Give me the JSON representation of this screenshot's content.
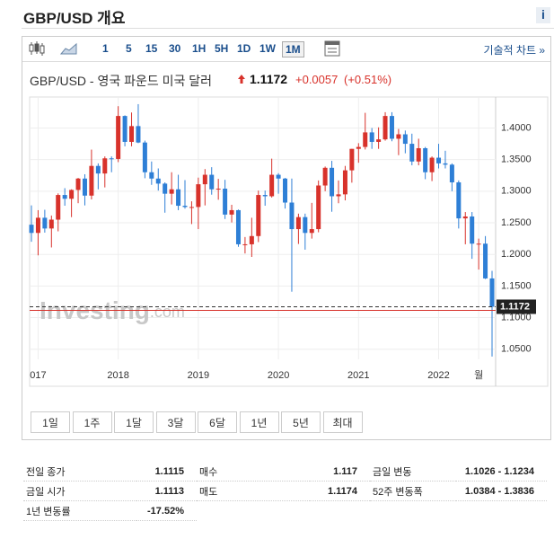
{
  "header": {
    "title": "GBP/USD 개요",
    "info": "i"
  },
  "toolbar": {
    "intervals": [
      "1",
      "5",
      "15",
      "30",
      "1H",
      "5H",
      "1D",
      "1W",
      "1M"
    ],
    "active": "1M",
    "advanced": "기술적 차트 »"
  },
  "quote": {
    "name": "GBP/USD - 영국 파운드 미국 달러",
    "price": "1.1172",
    "change": "+0.0057",
    "change_pct": "(+0.51%)"
  },
  "chart_data": {
    "type": "candlestick",
    "watermark": {
      "brand": "Investing",
      "suffix": ".com"
    },
    "categories": [
      null,
      "017",
      null,
      null,
      null,
      null,
      null,
      null,
      null,
      null,
      null,
      null,
      null,
      "2018",
      null,
      null,
      null,
      null,
      null,
      null,
      null,
      null,
      null,
      null,
      null,
      "2019",
      null,
      null,
      null,
      null,
      null,
      null,
      null,
      null,
      null,
      null,
      null,
      "2020",
      null,
      null,
      null,
      null,
      null,
      null,
      null,
      null,
      null,
      null,
      null,
      "2021",
      null,
      null,
      null,
      null,
      null,
      null,
      null,
      null,
      null,
      null,
      null,
      "2022",
      null,
      null,
      null,
      null,
      null,
      "월",
      null,
      null
    ],
    "open": [
      1.247,
      1.234,
      1.258,
      1.241,
      1.255,
      1.294,
      1.288,
      1.302,
      1.32,
      1.293,
      1.34,
      1.328,
      1.352,
      1.351,
      1.419,
      1.378,
      1.403,
      1.377,
      1.33,
      1.32,
      1.312,
      1.296,
      1.303,
      1.277,
      1.275,
      1.275,
      1.311,
      1.326,
      1.303,
      1.304,
      1.263,
      1.27,
      1.216,
      1.216,
      1.229,
      1.294,
      1.292,
      1.326,
      1.32,
      1.282,
      1.24,
      1.259,
      1.234,
      1.24,
      1.309,
      1.337,
      1.292,
      1.295,
      1.333,
      1.367,
      1.37,
      1.393,
      1.378,
      1.382,
      1.419,
      1.383,
      1.39,
      1.375,
      1.347,
      1.368,
      1.33,
      1.353,
      1.344,
      1.342,
      1.314,
      1.257,
      1.26,
      1.217,
      1.217,
      1.162
    ],
    "high": [
      1.2775,
      1.27,
      1.2706,
      1.2615,
      1.2965,
      1.3048,
      1.303,
      1.321,
      1.3268,
      1.3658,
      1.344,
      1.355,
      1.355,
      1.4345,
      1.42,
      1.4245,
      1.4377,
      1.38,
      1.347,
      1.336,
      1.314,
      1.33,
      1.326,
      1.3175,
      1.284,
      1.3215,
      1.335,
      1.338,
      1.3195,
      1.318,
      1.2785,
      1.271,
      1.2275,
      1.258,
      1.301,
      1.301,
      1.3515,
      1.3285,
      1.321,
      1.32,
      1.2645,
      1.2645,
      1.2815,
      1.317,
      1.339,
      1.348,
      1.317,
      1.34,
      1.367,
      1.376,
      1.424,
      1.4,
      1.401,
      1.425,
      1.425,
      1.3985,
      1.396,
      1.391,
      1.383,
      1.37,
      1.355,
      1.375,
      1.364,
      1.344,
      1.317,
      1.267,
      1.267,
      1.225,
      1.229,
      1.174
    ],
    "low": [
      1.22,
      1.1985,
      1.2345,
      1.211,
      1.2365,
      1.277,
      1.259,
      1.281,
      1.2775,
      1.287,
      1.303,
      1.306,
      1.33,
      1.346,
      1.371,
      1.371,
      1.376,
      1.3205,
      1.31,
      1.301,
      1.266,
      1.279,
      1.27,
      1.2725,
      1.248,
      1.24,
      1.2775,
      1.2945,
      1.2865,
      1.256,
      1.2505,
      1.212,
      1.2015,
      1.196,
      1.2195,
      1.277,
      1.29,
      1.296,
      1.2725,
      1.141,
      1.2165,
      1.2075,
      1.225,
      1.235,
      1.3,
      1.2675,
      1.281,
      1.2855,
      1.3135,
      1.345,
      1.366,
      1.367,
      1.367,
      1.38,
      1.379,
      1.357,
      1.36,
      1.341,
      1.341,
      1.319,
      1.316,
      1.336,
      1.336,
      1.3,
      1.241,
      1.216,
      1.193,
      1.176,
      1.161,
      1.0384
    ],
    "close": [
      1.234,
      1.258,
      1.241,
      1.255,
      1.294,
      1.288,
      1.302,
      1.32,
      1.293,
      1.34,
      1.328,
      1.352,
      1.351,
      1.419,
      1.378,
      1.403,
      1.377,
      1.33,
      1.32,
      1.312,
      1.296,
      1.303,
      1.277,
      1.275,
      1.275,
      1.311,
      1.326,
      1.303,
      1.304,
      1.263,
      1.27,
      1.216,
      1.216,
      1.229,
      1.294,
      1.292,
      1.326,
      1.32,
      1.282,
      1.24,
      1.259,
      1.234,
      1.24,
      1.309,
      1.337,
      1.292,
      1.295,
      1.333,
      1.367,
      1.37,
      1.393,
      1.378,
      1.382,
      1.419,
      1.383,
      1.39,
      1.375,
      1.347,
      1.368,
      1.33,
      1.353,
      1.344,
      1.342,
      1.314,
      1.257,
      1.26,
      1.217,
      1.217,
      1.162,
      1.1172
    ],
    "up_color": "#d8322b",
    "down_color": "#2e7fd6",
    "ylim": [
      1.034,
      1.449
    ],
    "yticks": [
      {
        "value": 1.05,
        "label": "1.0500"
      },
      {
        "value": 1.1,
        "label": "1.1000"
      },
      {
        "value": 1.15,
        "label": "1.1500"
      },
      {
        "value": 1.2,
        "label": "1.2000"
      },
      {
        "value": 1.25,
        "label": "1.2500"
      },
      {
        "value": 1.3,
        "label": "1.3000"
      },
      {
        "value": 1.35,
        "label": "1.3500"
      },
      {
        "value": 1.4,
        "label": "1.4000"
      }
    ],
    "grid": true
  },
  "ranges": [
    "1일",
    "1주",
    "1달",
    "3달",
    "6달",
    "1년",
    "5년",
    "최대"
  ],
  "stats": {
    "rows": [
      [
        [
          "전일 종가",
          "1.1115"
        ],
        [
          "매수",
          "1.117"
        ],
        [
          "금일 변동",
          "1.1026 - 1.1234"
        ]
      ],
      [
        [
          "금일 시가",
          "1.1113"
        ],
        [
          "매도",
          "1.1174"
        ],
        [
          "52주 변동폭",
          "1.0384 - 1.3836"
        ]
      ],
      [
        [
          "1년 변동률",
          "-17.52%"
        ]
      ]
    ]
  }
}
